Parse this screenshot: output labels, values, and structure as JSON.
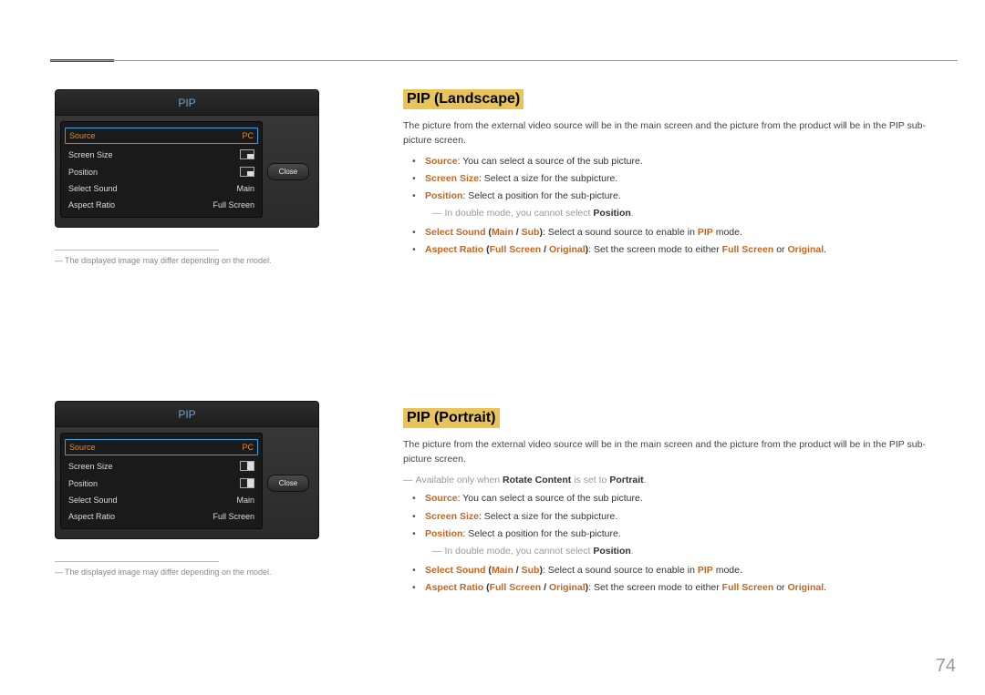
{
  "page_number": "74",
  "colors": {
    "highlight_bg": "#e8c45a",
    "highlight_text": "#c6651f",
    "osd_title": "#6aa4d8",
    "osd_selected_border": "#3aa0e0",
    "osd_selected_text": "#e08a2a"
  },
  "osd1": {
    "title": "PIP",
    "rows": [
      {
        "label": "Source",
        "value": "PC",
        "selected": true,
        "icon": null
      },
      {
        "label": "Screen Size",
        "value": "",
        "selected": false,
        "icon": "br"
      },
      {
        "label": "Position",
        "value": "",
        "selected": false,
        "icon": "br"
      },
      {
        "label": "Select Sound",
        "value": "Main",
        "selected": false,
        "icon": null
      },
      {
        "label": "Aspect Ratio",
        "value": "Full Screen",
        "selected": false,
        "icon": null
      }
    ],
    "close_label": "Close"
  },
  "osd2": {
    "title": "PIP",
    "rows": [
      {
        "label": "Source",
        "value": "PC",
        "selected": true,
        "icon": null
      },
      {
        "label": "Screen Size",
        "value": "",
        "selected": false,
        "icon": "hr"
      },
      {
        "label": "Position",
        "value": "",
        "selected": false,
        "icon": "hr"
      },
      {
        "label": "Select Sound",
        "value": "Main",
        "selected": false,
        "icon": null
      },
      {
        "label": "Aspect Ratio",
        "value": "Full Screen",
        "selected": false,
        "icon": null
      }
    ],
    "close_label": "Close"
  },
  "footnote1": "The displayed image may differ depending on the model.",
  "footnote2": "The displayed image may differ depending on the model.",
  "landscape": {
    "heading": "PIP (Landscape)",
    "intro": "The picture from the external video source will be in the main screen and the picture from the product will be in the PIP sub-picture screen.",
    "items": {
      "source_key": "Source",
      "source_text": ": You can select a source of the sub picture.",
      "size_key": "Screen Size",
      "size_text": ": Select a size for the subpicture.",
      "pos_key": "Position",
      "pos_text": ": Select a position for the sub-picture.",
      "pos_note_pre": "In double mode, you cannot select ",
      "pos_note_key": "Position",
      "pos_note_post": ".",
      "sound_key": "Select Sound",
      "sound_paren_pre": " (",
      "sound_main": "Main",
      "sound_sep": " / ",
      "sound_sub": "Sub",
      "sound_paren_post": ")",
      "sound_text": ": Select a sound source to enable in ",
      "sound_mode": "PIP",
      "sound_text2": " mode.",
      "aspect_key": "Aspect Ratio",
      "aspect_paren_pre": " (",
      "aspect_full": "Full Screen",
      "aspect_sep": " / ",
      "aspect_orig": "Original",
      "aspect_paren_post": ")",
      "aspect_text": ": Set the screen mode to either ",
      "aspect_or": " or ",
      "aspect_dot": "."
    }
  },
  "portrait": {
    "heading": "PIP (Portrait)",
    "intro": "The picture from the external video source will be in the main screen and the picture from the product will be in the PIP sub-picture screen.",
    "avail_pre": "Available only when ",
    "avail_key": "Rotate Content",
    "avail_mid": " is set to ",
    "avail_val": "Portrait",
    "avail_post": ".",
    "items": {
      "source_key": "Source",
      "source_text": ": You can select a source of the sub picture.",
      "size_key": "Screen Size",
      "size_text": ": Select a size for the subpicture.",
      "pos_key": "Position",
      "pos_text": ": Select a position for the sub-picture.",
      "pos_note_pre": "In double mode, you cannot select ",
      "pos_note_key": "Position",
      "pos_note_post": ".",
      "sound_key": "Select Sound",
      "sound_paren_pre": " (",
      "sound_main": "Main",
      "sound_sep": " / ",
      "sound_sub": "Sub",
      "sound_paren_post": ")",
      "sound_text": ": Select a sound source to enable in ",
      "sound_mode": "PIP",
      "sound_text2": " mode.",
      "aspect_key": "Aspect Ratio",
      "aspect_paren_pre": " (",
      "aspect_full": "Full Screen",
      "aspect_sep": " / ",
      "aspect_orig": "Original",
      "aspect_paren_post": ")",
      "aspect_text": ": Set the screen mode to either ",
      "aspect_or": " or ",
      "aspect_dot": "."
    }
  }
}
